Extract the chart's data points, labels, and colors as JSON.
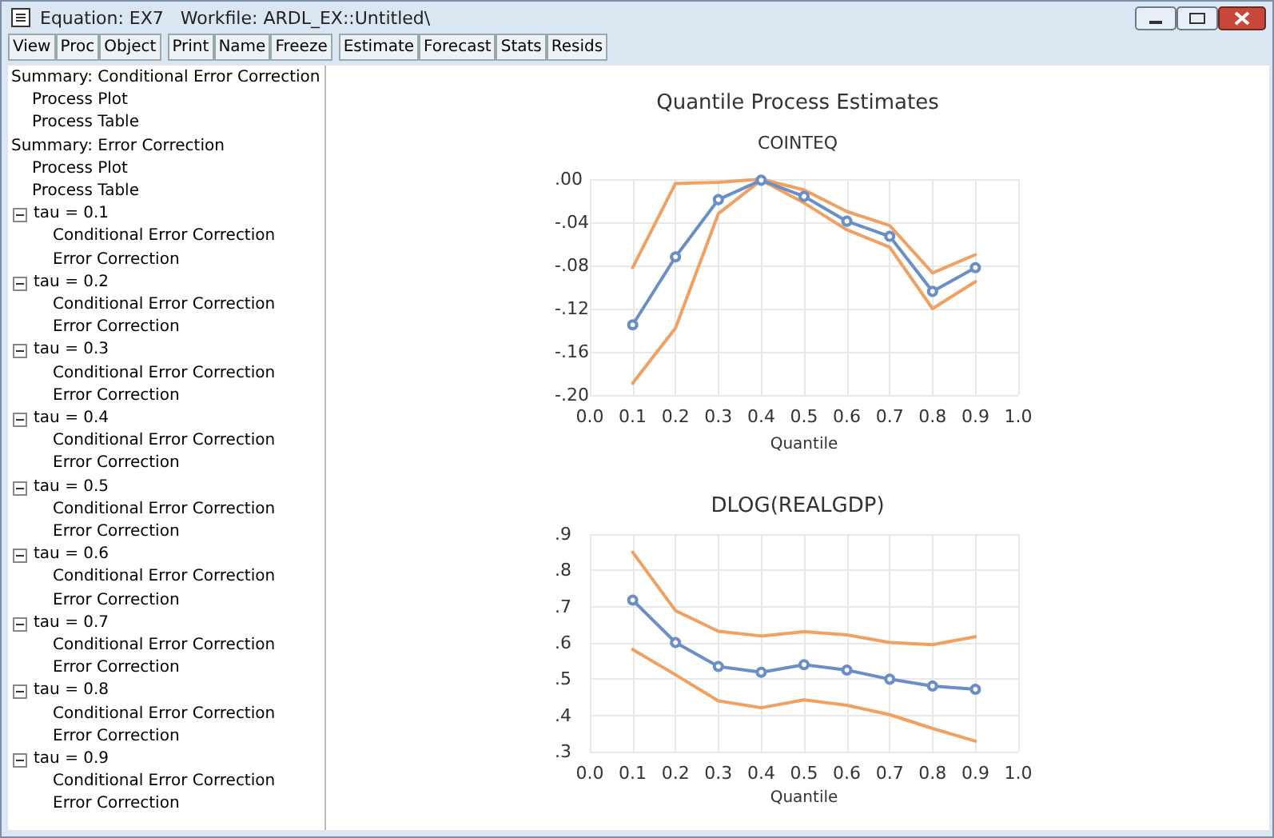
{
  "chart_data": [
    {
      "type": "other",
      "title": "Equation: EX7   Workfile: ARDL_EX::Untitled\\",
      "annotations": [
        "View",
        "Proc",
        "Object",
        "Print",
        "Name",
        "Freeze",
        "Estimate",
        "Forecast",
        "Stats",
        "Resids"
      ]
    },
    {
      "type": "other",
      "annotations": [
        "Summary: Conditional Error Correction",
        "  Process Plot",
        "  Process Table",
        "Summary: Error Correction",
        "  Process Plot",
        "  Process Table",
        "tau = 0.1",
        "    Conditional Error Correction",
        "    Error Correction",
        "tau = 0.2",
        "    Conditional Error Correction",
        "    Error Correction",
        "tau = 0.3",
        "    Conditional Error Correction",
        "    Error Correction",
        "tau = 0.4",
        "    Conditional Error Correction",
        "    Error Correction",
        "tau = 0.5",
        "    Conditional Error Correction",
        "    Error Correction",
        "tau = 0.6",
        "    Conditional Error Correction",
        "    Error Correction",
        "tau = 0.7",
        "    Conditional Error Correction",
        "    Error Correction",
        "tau = 0.8",
        "    Conditional Error Correction",
        "    Error Correction",
        "tau = 0.9",
        "    Conditional Error Correction",
        "    Error Correction"
      ]
    },
    {
      "type": "line",
      "title": "Quantile Process Estimates",
      "subtitle": "COINTEQ",
      "xlabel": "Quantile",
      "x": [
        0.1,
        0.2,
        0.3,
        0.4,
        0.5,
        0.6,
        0.7,
        0.8,
        0.9
      ],
      "xlim": [
        0,
        1
      ],
      "xticks": [
        {
          "value": 0,
          "label": "0.0"
        },
        {
          "value": 0.1,
          "label": "0.1"
        },
        {
          "value": 0.2,
          "label": "0.2"
        },
        {
          "value": 0.3,
          "label": "0.3"
        },
        {
          "value": 0.4,
          "label": "0.4"
        },
        {
          "value": 0.5,
          "label": "0.5"
        },
        {
          "value": 0.6,
          "label": "0.6"
        },
        {
          "value": 0.7,
          "label": "0.7"
        },
        {
          "value": 0.8,
          "label": "0.8"
        },
        {
          "value": 0.9,
          "label": "0.9"
        },
        {
          "value": 1,
          "label": "1.0"
        }
      ],
      "ylim": [
        -0.2,
        0
      ],
      "yticks": [
        {
          "value": -0.2,
          "label": "-.20"
        },
        {
          "value": -0.16,
          "label": "-.16"
        },
        {
          "value": -0.12,
          "label": "-.12"
        },
        {
          "value": -0.08,
          "label": "-.08"
        },
        {
          "value": -0.04,
          "label": "-.04"
        },
        {
          "value": 0,
          "label": ".00"
        }
      ],
      "grid": true,
      "line_style": "solid",
      "series": [
        {
          "color": "#f0a060",
          "marker": "none",
          "values": [
            -0.082,
            -0.004,
            -0.003,
            0.0,
            -0.01,
            -0.03,
            -0.043,
            -0.087,
            -0.07
          ]
        },
        {
          "color": "#f0a060",
          "marker": "none",
          "values": [
            -0.189,
            -0.138,
            -0.032,
            -0.001,
            -0.022,
            -0.047,
            -0.063,
            -0.12,
            -0.095
          ]
        },
        {
          "color": "#6a8fc7",
          "marker": "circle",
          "values": [
            -0.135,
            -0.072,
            -0.019,
            -0.001,
            -0.016,
            -0.039,
            -0.053,
            -0.104,
            -0.082
          ]
        }
      ]
    },
    {
      "type": "line",
      "title": "DLOG(REALGDP)",
      "xlabel": "Quantile",
      "x": [
        0.1,
        0.2,
        0.3,
        0.4,
        0.5,
        0.6,
        0.7,
        0.8,
        0.9
      ],
      "xlim": [
        0,
        1
      ],
      "xticks": [
        {
          "value": 0,
          "label": "0.0"
        },
        {
          "value": 0.1,
          "label": "0.1"
        },
        {
          "value": 0.2,
          "label": "0.2"
        },
        {
          "value": 0.3,
          "label": "0.3"
        },
        {
          "value": 0.4,
          "label": "0.4"
        },
        {
          "value": 0.5,
          "label": "0.5"
        },
        {
          "value": 0.6,
          "label": "0.6"
        },
        {
          "value": 0.7,
          "label": "0.7"
        },
        {
          "value": 0.8,
          "label": "0.8"
        },
        {
          "value": 0.9,
          "label": "0.9"
        },
        {
          "value": 1,
          "label": "1.0"
        }
      ],
      "ylim": [
        0.3,
        0.9
      ],
      "yticks": [
        {
          "value": 0.3,
          "label": ".3"
        },
        {
          "value": 0.4,
          "label": ".4"
        },
        {
          "value": 0.5,
          "label": ".5"
        },
        {
          "value": 0.6,
          "label": ".6"
        },
        {
          "value": 0.7,
          "label": ".7"
        },
        {
          "value": 0.8,
          "label": ".8"
        },
        {
          "value": 0.9,
          "label": ".9"
        }
      ],
      "grid": true,
      "line_style": "solid",
      "series": [
        {
          "color": "#f0a060",
          "marker": "none",
          "values": [
            0.85,
            0.689,
            0.632,
            0.619,
            0.631,
            0.622,
            0.601,
            0.595,
            0.617
          ]
        },
        {
          "color": "#f0a060",
          "marker": "none",
          "values": [
            0.582,
            0.512,
            0.44,
            0.421,
            0.443,
            0.428,
            0.402,
            0.364,
            0.329
          ]
        },
        {
          "color": "#6a8fc7",
          "marker": "circle",
          "values": [
            0.718,
            0.601,
            0.535,
            0.519,
            0.54,
            0.525,
            0.5,
            0.481,
            0.472
          ]
        }
      ]
    }
  ]
}
